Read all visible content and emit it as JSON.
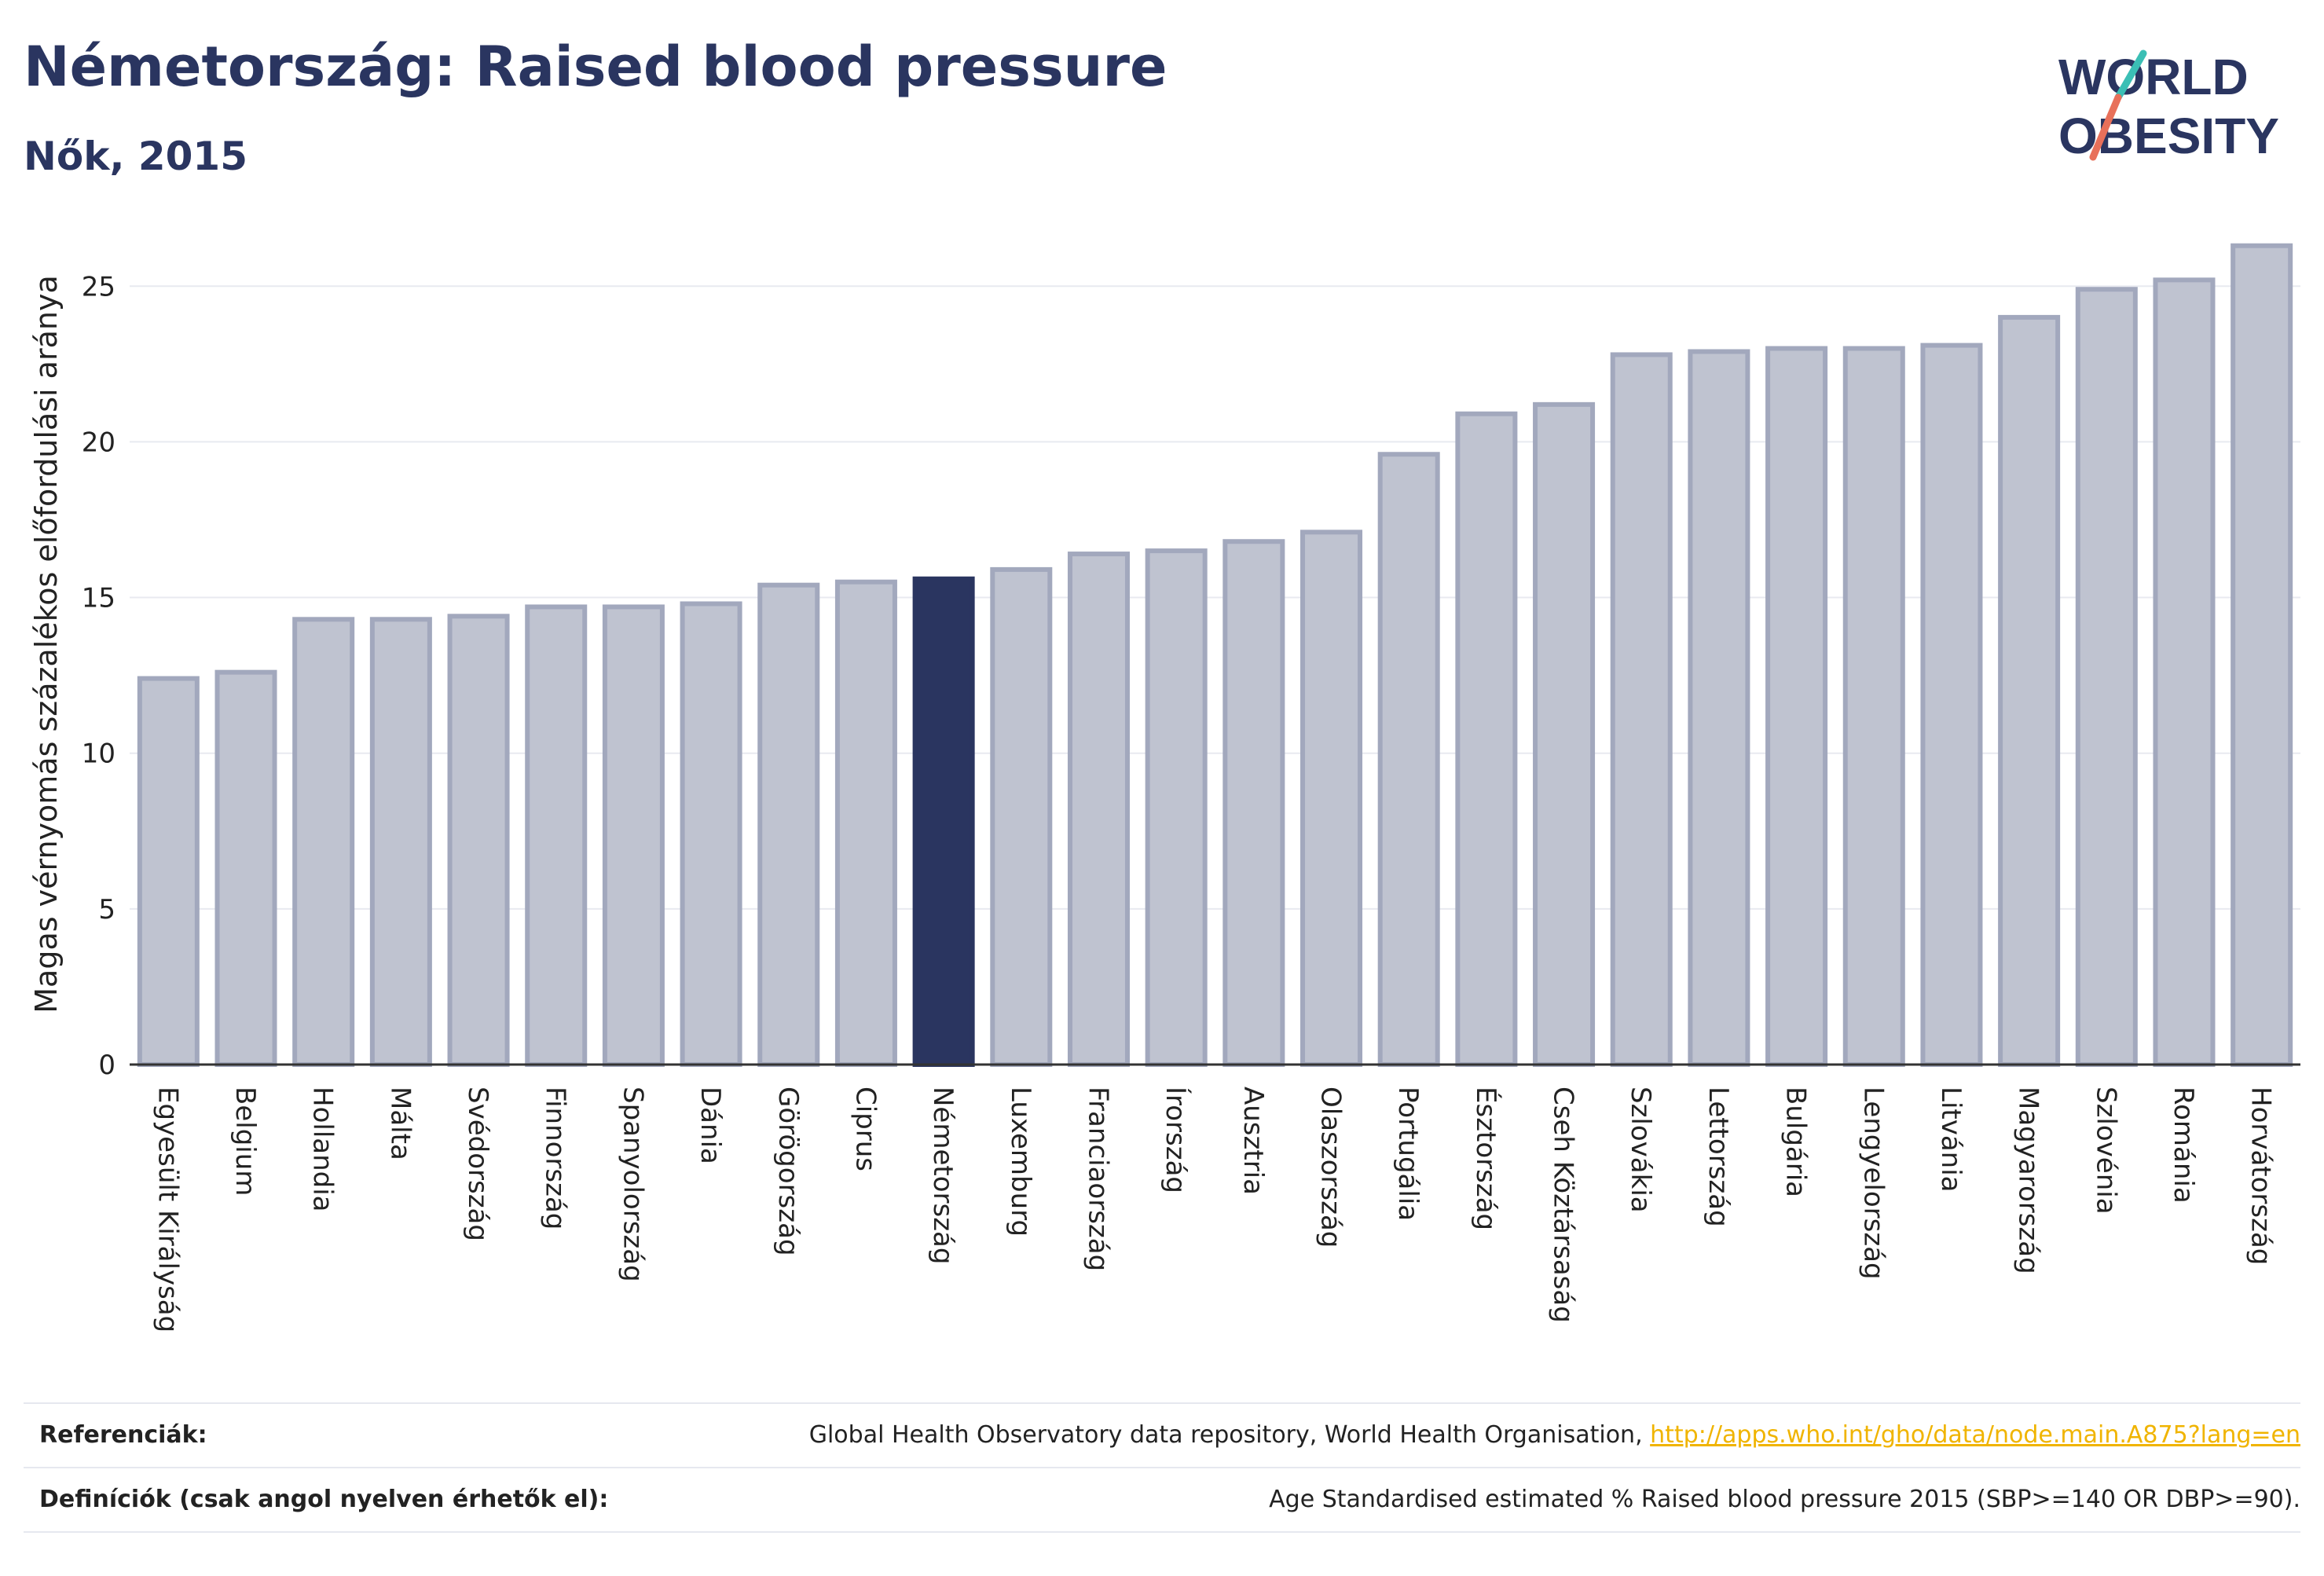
{
  "header": {
    "title": "Németország: Raised blood pressure",
    "subtitle": "Nők, 2015"
  },
  "logo": {
    "line1": "WORLD",
    "line2": "OBESITY"
  },
  "colors": {
    "bar_default": "#bfc3d0",
    "bar_default_stroke": "#a2a8bd",
    "bar_highlight": "#2a3560",
    "accent_teal": "#3bbfb5",
    "accent_coral": "#e8705a"
  },
  "chart_data": {
    "type": "bar",
    "ylabel": "Magas vérnyomás százalékos előfordulási aránya",
    "ylim": [
      0,
      27
    ],
    "yticks": [
      0,
      5,
      10,
      15,
      20,
      25
    ],
    "grid": true,
    "highlight": "Németország",
    "categories": [
      "Egyesült Királyság",
      "Belgium",
      "Hollandia",
      "Málta",
      "Svédország",
      "Finnország",
      "Spanyolország",
      "Dánia",
      "Görögország",
      "Ciprus",
      "Németország",
      "Luxemburg",
      "Franciaország",
      "Írország",
      "Ausztria",
      "Olaszország",
      "Portugália",
      "Észtország",
      "Cseh Köztársaság",
      "Szlovákia",
      "Lettország",
      "Bulgária",
      "Lengyelország",
      "Litvánia",
      "Magyarország",
      "Szlovénia",
      "Románia",
      "Horvátország"
    ],
    "values": [
      12.4,
      12.6,
      14.3,
      14.3,
      14.4,
      14.7,
      14.7,
      14.8,
      15.4,
      15.5,
      15.6,
      15.9,
      16.4,
      16.5,
      16.8,
      17.1,
      19.6,
      20.9,
      21.2,
      22.8,
      22.9,
      23.0,
      23.0,
      23.1,
      24.0,
      24.9,
      25.2,
      26.3
    ]
  },
  "references": {
    "ref_label": "Referenciák:",
    "ref_text": "Global Health Observatory data repository, World Health Organisation, ",
    "ref_link": "http://apps.who.int/gho/data/node.main.A875?lang=en",
    "def_label": "Definíciók (csak angol nyelven érhetők el):",
    "def_text": "Age Standardised estimated % Raised blood pressure 2015 (SBP>=140 OR DBP>=90)."
  }
}
